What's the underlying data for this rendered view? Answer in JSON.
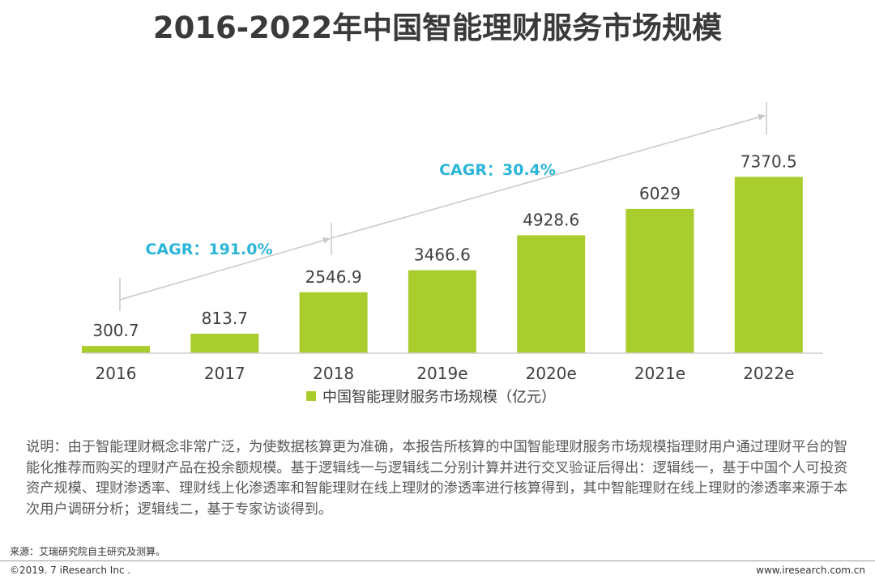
{
  "header": {
    "title": "2016-2022年中国智能理财服务市场规模"
  },
  "chart_data": {
    "type": "bar",
    "title": "2016-2022年中国智能理财服务市场规模",
    "categories": [
      "2016",
      "2017",
      "2018",
      "2019e",
      "2020e",
      "2021e",
      "2022e"
    ],
    "values": [
      300.7,
      813.7,
      2546.9,
      3466.6,
      4928.6,
      6029,
      7370.5
    ],
    "value_labels": [
      "300.7",
      "813.7",
      "2546.9",
      "3466.6",
      "4928.6",
      "6029",
      "7370.5"
    ],
    "series": [
      {
        "name": "中国智能理财服务市场规模（亿元）",
        "values": [
          300.7,
          813.7,
          2546.9,
          3466.6,
          4928.6,
          6029,
          7370.5
        ]
      }
    ],
    "ylim": [
      0,
      8000
    ],
    "xlabel": "",
    "ylabel": "",
    "legend": "bottom",
    "colors": {
      "bar": "#aacd2e",
      "cagr_text": "#2bb5d9",
      "arrow": "#c8c8c8"
    },
    "annotations": [
      {
        "text": "CAGR：191.0%",
        "from": "2016",
        "to": "2018"
      },
      {
        "text": "CAGR：30.4%",
        "from": "2018",
        "to": "2022e"
      }
    ]
  },
  "legend": {
    "label": "中国智能理财服务市场规模（亿元）"
  },
  "note": {
    "text": "说明：由于智能理财概念非常广泛，为使数据核算更为准确，本报告所核算的中国智能理财服务市场规模指理财用户通过理财平台的智能化推荐而购买的理财产品在投余额规模。基于逻辑线一与逻辑线二分别计算并进行交叉验证后得出：逻辑线一，基于中国个人可投资资产规模、理财渗透率、理财线上化渗透率和智能理财在线上理财的渗透率进行核算得到，其中智能理财在线上理财的渗透率来源于本次用户调研分析；逻辑线二，基于专家访谈得到。"
  },
  "footer": {
    "source": "来源：艾瑞研究院自主研究及测算。",
    "copyright": "©2019. 7 iResearch Inc .",
    "website": "www.iresearch.com.cn"
  }
}
